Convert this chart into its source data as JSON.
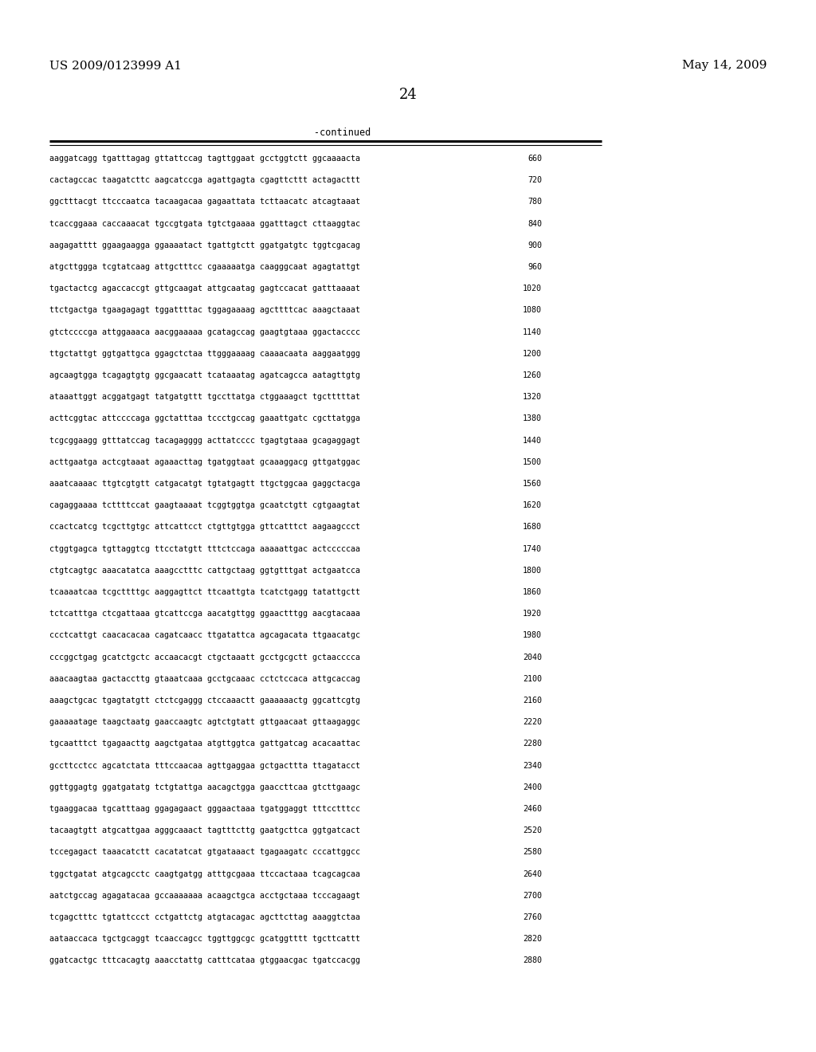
{
  "header_left": "US 2009/0123999 A1",
  "header_right": "May 14, 2009",
  "page_number": "24",
  "continued_label": "-continued",
  "background_color": "#ffffff",
  "text_color": "#000000",
  "sequence_lines": [
    [
      "aaggatcagg tgatttagag gttattccag tagttggaat gcctggtctt ggcaaaacta",
      "660"
    ],
    [
      "cactagccac taagatcttc aagcatccga agattgagta cgagttcttt actagacttt",
      "720"
    ],
    [
      "ggctttacgt ttcccaatca tacaagacaa gagaattata tcttaacatc atcagtaaat",
      "780"
    ],
    [
      "tcaccggaaa caccaaacat tgccgtgata tgtctgaaaa ggatttagct cttaaggtac",
      "840"
    ],
    [
      "aagagatttt ggaagaagga ggaaaatact tgattgtctt ggatgatgtc tggtcgacag",
      "900"
    ],
    [
      "atgcttggga tcgtatcaag attgctttcc cgaaaaatga caagggcaat agagtattgt",
      "960"
    ],
    [
      "tgactactcg agaccaccgt gttgcaagat attgcaatag gagtccacat gatttaaaat",
      "1020"
    ],
    [
      "ttctgactga tgaagagagt tggattttac tggagaaaag agcttttcac aaagctaaat",
      "1080"
    ],
    [
      "gtctccccga attggaaaca aacggaaaaa gcatagccag gaagtgtaaa ggactacccc",
      "1140"
    ],
    [
      "ttgctattgt ggtgattgca ggagctctaa ttgggaaaag caaaacaata aaggaatggg",
      "1200"
    ],
    [
      "agcaagtgga tcagagtgtg ggcgaacatt tcataaatag agatcagcca aatagttgtg",
      "1260"
    ],
    [
      "ataaattggt acggatgagt tatgatgttt tgccttatga ctggaaagct tgctttttat",
      "1320"
    ],
    [
      "acttcggtac attccccaga ggctatttaa tccctgccag gaaattgatc cgcttatgga",
      "1380"
    ],
    [
      "tcgcggaagg gtttatccag tacagagggg acttatcccc tgagtgtaaa gcagaggagt",
      "1440"
    ],
    [
      "acttgaatga actcgtaaat agaaacttag tgatggtaat gcaaaggacg gttgatggac",
      "1500"
    ],
    [
      "aaatcaaaac ttgtcgtgtt catgacatgt tgtatgagtt ttgctggcaa gaggctacga",
      "1560"
    ],
    [
      "cagaggaaaa tcttttccat gaagtaaaat tcggtggtga gcaatctgtt cgtgaagtat",
      "1620"
    ],
    [
      "ccactcatcg tcgcttgtgc attcattcct ctgttgtgga gttcatttct aagaagccct",
      "1680"
    ],
    [
      "ctggtgagca tgttaggtcg ttcctatgtt tttctccaga aaaaattgac actcccccaa",
      "1740"
    ],
    [
      "ctgtcagtgc aaacatatca aaagcctttc cattgctaag ggtgtttgat actgaatcca",
      "1800"
    ],
    [
      "tcaaaatcaa tcgcttttgc aaggagttct ttcaattgta tcatctgagg tatattgctt",
      "1860"
    ],
    [
      "tctcatttga ctcgattaaa gtcattccga aacatgttgg ggaactttgg aacgtacaaa",
      "1920"
    ],
    [
      "ccctcattgt caacacacaa cagatcaacc ttgatattca agcagacata ttgaacatgc",
      "1980"
    ],
    [
      "cccggctgag gcatctgctc accaacacgt ctgctaaatt gcctgcgctt gctaacccca",
      "2040"
    ],
    [
      "aaacaagtaa gactaccttg gtaaatcaaa gcctgcaaac cctctccaca attgcaccag",
      "2100"
    ],
    [
      "aaagctgcac tgagtatgtt ctctcgaggg ctccaaactt gaaaaaactg ggcattcgtg",
      "2160"
    ],
    [
      "gaaaaatage taagctaatg gaaccaagtc agtctgtatt gttgaacaat gttaagaggc",
      "2220"
    ],
    [
      "tgcaatttct tgagaacttg aagctgataa atgttggtca gattgatcag acacaattac",
      "2280"
    ],
    [
      "gccttcctcc agcatctata tttccaacaa agttgaggaa gctgacttta ttagatacct",
      "2340"
    ],
    [
      "ggttggagtg ggatgatatg tctgtattga aacagctgga gaaccttcaa gtcttgaagc",
      "2400"
    ],
    [
      "tgaaggacaa tgcatttaag ggagagaact gggaactaaa tgatggaggt tttcctttcc",
      "2460"
    ],
    [
      "tacaagtgtt atgcattgaa agggcaaact tagtttcttg gaatgcttca ggtgatcact",
      "2520"
    ],
    [
      "tccegagact taaacatctt cacatatcat gtgataaact tgagaagatc cccattggcc",
      "2580"
    ],
    [
      "tggctgatat atgcagcctc caagtgatgg atttgcgaaa ttccactaaa tcagcagcaa",
      "2640"
    ],
    [
      "aatctgccag agagatacaa gccaaaaaaa acaagctgca acctgctaaa tcccagaagt",
      "2700"
    ],
    [
      "tcgagctttc tgtattccct cctgattctg atgtacagac agcttcttag aaaggtctaa",
      "2760"
    ],
    [
      "aataaccaca tgctgcaggt tcaaccagcc tggttggcgc gcatggtttt tgcttcattt",
      "2820"
    ],
    [
      "ggatcactgc tttcacagtg aaacctattg catttcataa gtggaacgac tgatccacgg",
      "2880"
    ]
  ]
}
